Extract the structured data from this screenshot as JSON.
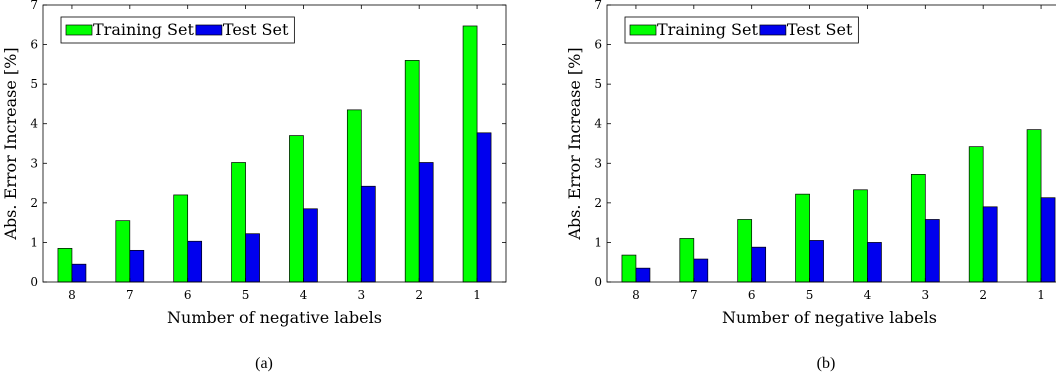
{
  "colors": {
    "training": "#00ff00",
    "test": "#0000ee",
    "axis": "#000000"
  },
  "chart_data": [
    {
      "type": "bar",
      "caption": "(a)",
      "categories": [
        "8",
        "7",
        "6",
        "5",
        "4",
        "3",
        "2",
        "1"
      ],
      "series": [
        {
          "name": "Training Set",
          "values": [
            0.85,
            1.55,
            2.2,
            3.02,
            3.7,
            4.35,
            5.6,
            6.47
          ]
        },
        {
          "name": "Test Set",
          "values": [
            0.45,
            0.8,
            1.03,
            1.22,
            1.85,
            2.42,
            3.02,
            3.77
          ]
        }
      ],
      "xlabel": "Number of negative labels",
      "ylabel": "Abs. Error Increase [%]",
      "ylim": [
        0,
        7
      ],
      "yticks": [
        "0",
        "1",
        "2",
        "3",
        "4",
        "5",
        "6",
        "7"
      ],
      "legend": "top-left",
      "grid": false
    },
    {
      "type": "bar",
      "caption": "(b)",
      "categories": [
        "8",
        "7",
        "6",
        "5",
        "4",
        "3",
        "2",
        "1"
      ],
      "series": [
        {
          "name": "Training Set",
          "values": [
            0.68,
            1.1,
            1.58,
            2.22,
            2.33,
            2.72,
            3.42,
            3.85
          ]
        },
        {
          "name": "Test Set",
          "values": [
            0.35,
            0.58,
            0.88,
            1.05,
            1.0,
            1.58,
            1.9,
            2.13
          ]
        }
      ],
      "xlabel": "Number of negative labels",
      "ylabel": "Abs. Error Increase [%]",
      "ylim": [
        0,
        7
      ],
      "yticks": [
        "0",
        "1",
        "2",
        "3",
        "4",
        "5",
        "6",
        "7"
      ],
      "legend": "top-left",
      "grid": false
    }
  ]
}
